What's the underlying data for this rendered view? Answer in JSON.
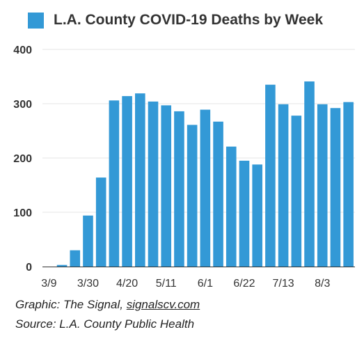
{
  "chart_data": {
    "type": "bar",
    "title": "",
    "legend": {
      "label": "L.A. County COVID-19 Deaths by Week",
      "placement": "top-left"
    },
    "xlabel": "",
    "ylabel": "",
    "ylim": [
      0,
      400
    ],
    "yticks": [
      0,
      100,
      200,
      300,
      400
    ],
    "grid": true,
    "color": "#3399d6",
    "categories": [
      "3/9",
      "3/16",
      "3/23",
      "3/30",
      "4/6",
      "4/13",
      "4/20",
      "4/27",
      "5/4",
      "5/11",
      "5/18",
      "5/25",
      "6/1",
      "6/8",
      "6/15",
      "6/22",
      "6/29",
      "7/6",
      "7/13",
      "7/20",
      "7/27",
      "8/3",
      "8/10",
      "8/17"
    ],
    "xtick_labels": [
      "3/9",
      "3/30",
      "4/20",
      "5/11",
      "6/1",
      "6/22",
      "7/13",
      "8/3"
    ],
    "values": [
      0,
      3,
      30,
      94,
      164,
      306,
      314,
      319,
      304,
      297,
      286,
      261,
      289,
      267,
      221,
      195,
      188,
      335,
      299,
      278,
      341,
      299,
      292,
      303
    ]
  },
  "footer": {
    "credit_prefix": "Graphic: The Signal, ",
    "credit_link": "signalscv.com",
    "source": "Source: L.A. County Public Health"
  }
}
